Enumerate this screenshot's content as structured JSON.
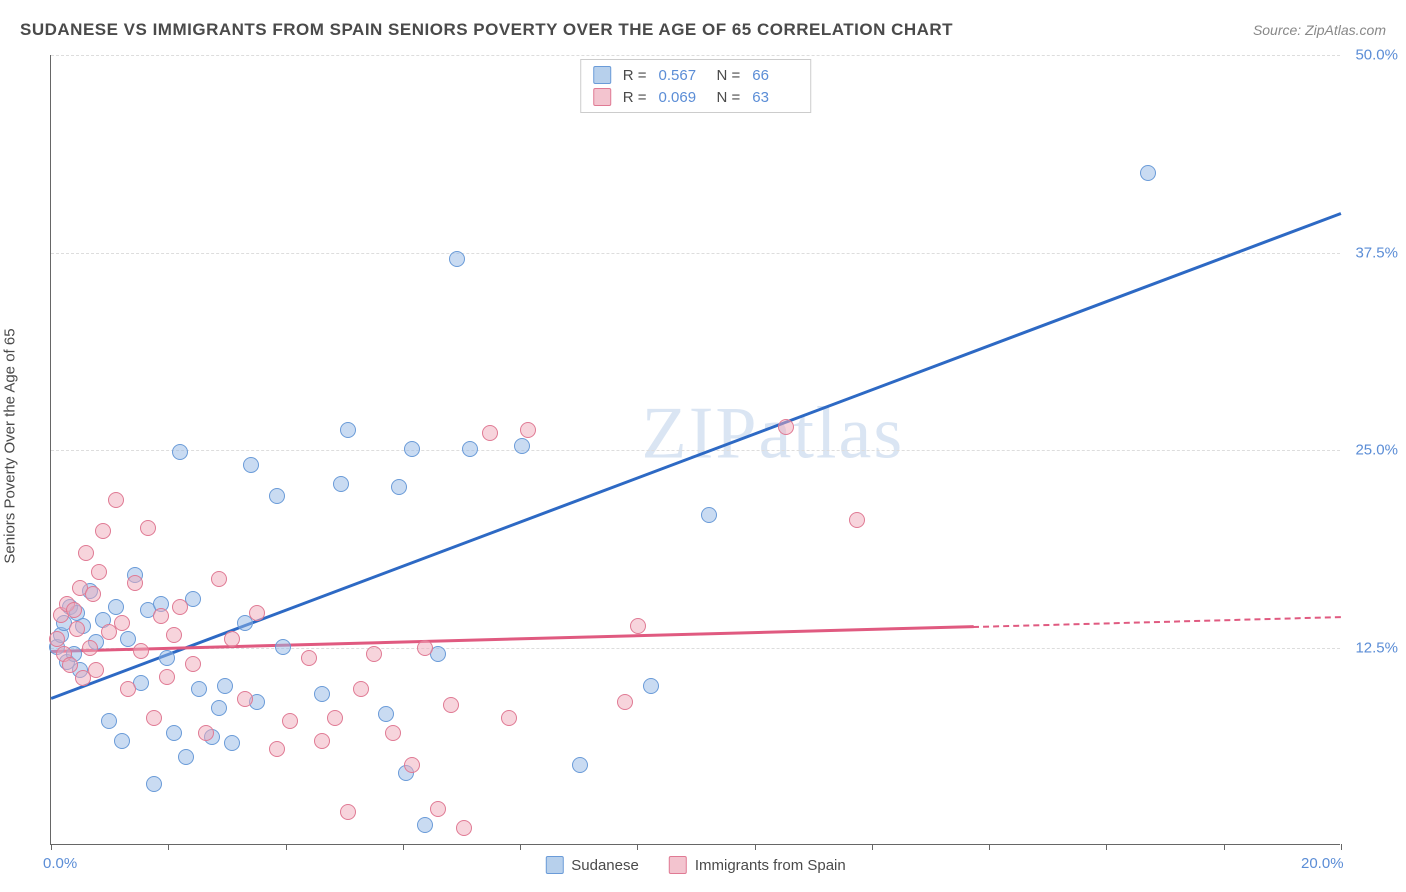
{
  "header": {
    "title": "SUDANESE VS IMMIGRANTS FROM SPAIN SENIORS POVERTY OVER THE AGE OF 65 CORRELATION CHART",
    "source": "Source: ZipAtlas.com"
  },
  "watermark": {
    "part1": "ZIP",
    "part2": "atlas"
  },
  "chart": {
    "type": "scatter",
    "ylabel": "Seniors Poverty Over the Age of 65",
    "x_domain": [
      0,
      20
    ],
    "y_domain": [
      0,
      50
    ],
    "x_ticks": [
      0,
      20
    ],
    "x_tick_labels": [
      "0.0%",
      "20.0%"
    ],
    "x_minor_tick_count": 11,
    "y_ticks": [
      12.5,
      25.0,
      37.5,
      50.0
    ],
    "y_tick_labels": [
      "12.5%",
      "25.0%",
      "37.5%",
      "50.0%"
    ],
    "gridline_color": "#dddddd",
    "axis_color": "#666666",
    "label_color": "#5b8dd6",
    "marker_radius": 8,
    "background": "#ffffff"
  },
  "legend_top": {
    "rows": [
      {
        "swatch_fill": "#b7d0ec",
        "swatch_border": "#6a9bd8",
        "r_label": "R =",
        "r_val": "0.567",
        "n_label": "N =",
        "n_val": "66"
      },
      {
        "swatch_fill": "#f3c4cf",
        "swatch_border": "#e07a94",
        "r_label": "R =",
        "r_val": "0.069",
        "n_label": "N =",
        "n_val": "63"
      }
    ]
  },
  "legend_bottom": {
    "items": [
      {
        "swatch_fill": "#b7d0ec",
        "swatch_border": "#6a9bd8",
        "label": "Sudanese"
      },
      {
        "swatch_fill": "#f3c4cf",
        "swatch_border": "#e07a94",
        "label": "Immigrants from Spain"
      }
    ]
  },
  "series": [
    {
      "name": "Sudanese",
      "class": "series-blue",
      "fill": "rgba(148,184,230,0.5)",
      "stroke": "#6a9bd8",
      "trend": {
        "color": "#2d69c4",
        "x1": 0,
        "y1": 9.3,
        "x2": 20,
        "y2": 40.0,
        "solid_end_x": 20
      },
      "points": [
        [
          0.1,
          12.5
        ],
        [
          0.15,
          13.2
        ],
        [
          0.2,
          14.0
        ],
        [
          0.25,
          11.5
        ],
        [
          0.3,
          15.0
        ],
        [
          0.35,
          12.0
        ],
        [
          0.4,
          14.6
        ],
        [
          0.45,
          11.0
        ],
        [
          0.5,
          13.8
        ],
        [
          0.6,
          16.0
        ],
        [
          0.7,
          12.8
        ],
        [
          0.8,
          14.2
        ],
        [
          0.9,
          7.8
        ],
        [
          1.0,
          15.0
        ],
        [
          1.1,
          6.5
        ],
        [
          1.2,
          13.0
        ],
        [
          1.3,
          17.0
        ],
        [
          1.4,
          10.2
        ],
        [
          1.5,
          14.8
        ],
        [
          1.6,
          3.8
        ],
        [
          1.7,
          15.2
        ],
        [
          1.8,
          11.8
        ],
        [
          1.9,
          7.0
        ],
        [
          2.0,
          24.8
        ],
        [
          2.1,
          5.5
        ],
        [
          2.2,
          15.5
        ],
        [
          2.3,
          9.8
        ],
        [
          2.5,
          6.8
        ],
        [
          2.6,
          8.6
        ],
        [
          2.7,
          10.0
        ],
        [
          2.8,
          6.4
        ],
        [
          3.0,
          14.0
        ],
        [
          3.1,
          24.0
        ],
        [
          3.2,
          9.0
        ],
        [
          3.5,
          22.0
        ],
        [
          3.6,
          12.5
        ],
        [
          4.2,
          9.5
        ],
        [
          4.5,
          22.8
        ],
        [
          4.6,
          26.2
        ],
        [
          5.2,
          8.2
        ],
        [
          5.4,
          22.6
        ],
        [
          5.5,
          4.5
        ],
        [
          5.6,
          25.0
        ],
        [
          5.8,
          1.2
        ],
        [
          6.0,
          12.0
        ],
        [
          6.3,
          37.0
        ],
        [
          6.5,
          25.0
        ],
        [
          7.3,
          25.2
        ],
        [
          8.2,
          5.0
        ],
        [
          9.3,
          10.0
        ],
        [
          10.2,
          20.8
        ],
        [
          17.0,
          42.5
        ]
      ]
    },
    {
      "name": "Immigrants from Spain",
      "class": "series-pink",
      "fill": "rgba(240,170,185,0.5)",
      "stroke": "#e07a94",
      "trend": {
        "color": "#e05a80",
        "x1": 0,
        "y1": 12.3,
        "x2": 20,
        "y2": 14.5,
        "solid_end_x": 14.3
      },
      "points": [
        [
          0.1,
          13.0
        ],
        [
          0.15,
          14.5
        ],
        [
          0.2,
          12.0
        ],
        [
          0.25,
          15.2
        ],
        [
          0.3,
          11.3
        ],
        [
          0.35,
          14.8
        ],
        [
          0.4,
          13.6
        ],
        [
          0.45,
          16.2
        ],
        [
          0.5,
          10.5
        ],
        [
          0.55,
          18.4
        ],
        [
          0.6,
          12.4
        ],
        [
          0.65,
          15.8
        ],
        [
          0.7,
          11.0
        ],
        [
          0.75,
          17.2
        ],
        [
          0.8,
          19.8
        ],
        [
          0.9,
          13.4
        ],
        [
          1.0,
          21.8
        ],
        [
          1.1,
          14.0
        ],
        [
          1.2,
          9.8
        ],
        [
          1.3,
          16.5
        ],
        [
          1.4,
          12.2
        ],
        [
          1.5,
          20.0
        ],
        [
          1.6,
          8.0
        ],
        [
          1.7,
          14.4
        ],
        [
          1.8,
          10.6
        ],
        [
          1.9,
          13.2
        ],
        [
          2.0,
          15.0
        ],
        [
          2.2,
          11.4
        ],
        [
          2.4,
          7.0
        ],
        [
          2.6,
          16.8
        ],
        [
          2.8,
          13.0
        ],
        [
          3.0,
          9.2
        ],
        [
          3.2,
          14.6
        ],
        [
          3.5,
          6.0
        ],
        [
          3.7,
          7.8
        ],
        [
          4.0,
          11.8
        ],
        [
          4.2,
          6.5
        ],
        [
          4.4,
          8.0
        ],
        [
          4.6,
          2.0
        ],
        [
          4.8,
          9.8
        ],
        [
          5.0,
          12.0
        ],
        [
          5.3,
          7.0
        ],
        [
          5.6,
          5.0
        ],
        [
          5.8,
          12.4
        ],
        [
          6.0,
          2.2
        ],
        [
          6.2,
          8.8
        ],
        [
          6.4,
          1.0
        ],
        [
          6.8,
          26.0
        ],
        [
          7.1,
          8.0
        ],
        [
          7.4,
          26.2
        ],
        [
          8.9,
          9.0
        ],
        [
          9.1,
          13.8
        ],
        [
          11.4,
          26.4
        ],
        [
          12.5,
          20.5
        ]
      ]
    }
  ]
}
